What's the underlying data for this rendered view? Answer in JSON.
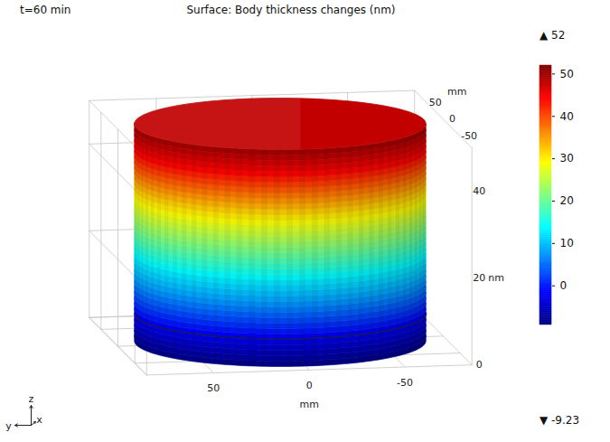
{
  "chart_data": {
    "type": "surface3d",
    "subtitle": "t=60 min",
    "title": "Surface: Body thickness changes (nm)",
    "x_label": "mm",
    "y_label": "mm",
    "z_label": "nm",
    "xlim": [
      -85,
      85
    ],
    "ylim": [
      -85,
      85
    ],
    "zlim": [
      0,
      50
    ],
    "xticks": [
      50,
      0,
      -50
    ],
    "yticks": [
      50,
      0,
      -50
    ],
    "zticks": [
      0,
      20,
      40
    ],
    "radius": 75,
    "surface": {
      "z": [
        0,
        5,
        10,
        15,
        20,
        25,
        30,
        35,
        40,
        45,
        50
      ],
      "values": [
        -9,
        -4,
        2,
        8,
        13,
        19,
        25,
        31,
        38,
        45,
        50
      ],
      "top": 48
    },
    "color": "jet",
    "clim": [
      -9.23,
      52
    ],
    "cticks": [
      0,
      10,
      20,
      30,
      40,
      50
    ],
    "max": 52,
    "min": -9.23,
    "max_marker": "▲",
    "min_marker": "▼",
    "triad": [
      "x",
      "y",
      "z"
    ]
  }
}
